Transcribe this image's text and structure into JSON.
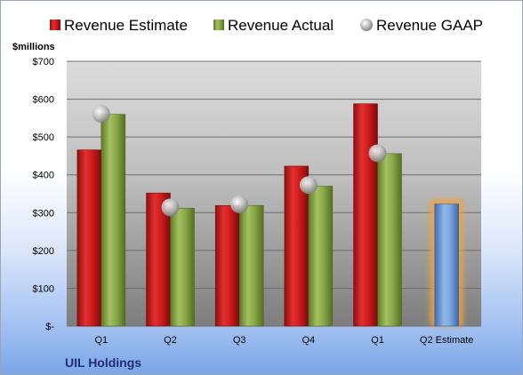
{
  "chart_data": {
    "type": "bar",
    "title": "",
    "ylabel": "$millions",
    "xlabel": "",
    "company": "UIL Holdings",
    "categories": [
      "Q1",
      "Q2",
      "Q3",
      "Q4",
      "Q1",
      "Q2 Estimate"
    ],
    "ylim": [
      0,
      700
    ],
    "yticks": [
      0,
      100,
      200,
      300,
      400,
      500,
      600,
      700
    ],
    "ytick_labels": [
      "$-",
      "$100",
      "$200",
      "$300",
      "$400",
      "$500",
      "$600",
      "$700"
    ],
    "grid": true,
    "legend_position": "top",
    "series": [
      {
        "name": "Revenue Estimate",
        "kind": "bar",
        "color": "#d81e1e",
        "values": [
          466,
          352,
          319,
          423,
          588,
          null
        ]
      },
      {
        "name": "Revenue Actual",
        "kind": "bar",
        "color": "#8fae4c",
        "values": [
          560,
          312,
          319,
          370,
          456,
          null
        ]
      },
      {
        "name": "Revenue GAAP",
        "kind": "marker",
        "color": "#a0a0a0",
        "values": [
          561,
          314,
          322,
          373,
          457,
          null
        ]
      },
      {
        "name": "Q2 Estimate",
        "kind": "bar",
        "color": "#6f9bd6",
        "highlight": "#f4a23c",
        "values": [
          null,
          null,
          null,
          null,
          null,
          323
        ]
      }
    ]
  }
}
